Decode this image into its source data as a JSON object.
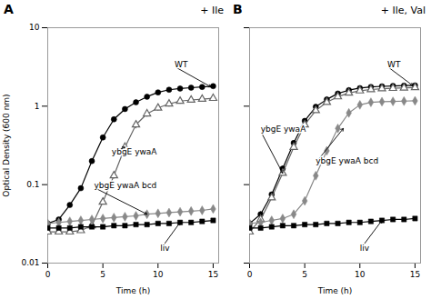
{
  "chart_data": [
    {
      "type": "line",
      "title": "A",
      "subtitle": "+ Ile",
      "x_label": "Time (h)",
      "y_label": "Optical Density (600 nm)",
      "log": "y",
      "xlim": [
        0,
        15.5
      ],
      "xticks": [
        0,
        5,
        10,
        15
      ],
      "ylim": [
        0.01,
        10
      ],
      "yticks": [
        0.01,
        0.1,
        1,
        10
      ],
      "x": [
        0,
        1,
        2,
        3,
        4,
        5,
        6,
        7,
        8,
        9,
        10,
        11,
        12,
        13,
        14,
        15
      ],
      "series": [
        {
          "name": "WT",
          "color": "#000000",
          "marker": "circle",
          "values": [
            0.032,
            0.036,
            0.055,
            0.09,
            0.2,
            0.4,
            0.68,
            0.92,
            1.12,
            1.32,
            1.5,
            1.62,
            1.68,
            1.72,
            1.76,
            1.8
          ],
          "errors": [
            0.002,
            0.002,
            0.003,
            0.005,
            0.012,
            0.022,
            0.045,
            0.062,
            0.072,
            0.082,
            0.09,
            0.1,
            0.1,
            0.1,
            0.1,
            0.1
          ]
        },
        {
          "name": "ybgE ywaA",
          "color": "#666666",
          "marker": "triangle-open",
          "values": [
            0.025,
            0.025,
            0.025,
            0.026,
            0.03,
            0.06,
            0.13,
            0.3,
            0.58,
            0.8,
            0.95,
            1.07,
            1.16,
            1.2,
            1.23,
            1.26
          ],
          "errors": [
            0.002,
            0.002,
            0.002,
            0.002,
            0.003,
            0.005,
            0.012,
            0.035,
            0.065,
            0.075,
            0.085,
            0.095,
            0.1,
            0.1,
            0.1,
            0.1
          ]
        },
        {
          "name": "ybgE ywaA bcd",
          "color": "#888888",
          "marker": "diamond",
          "values": [
            0.032,
            0.033,
            0.034,
            0.035,
            0.036,
            0.037,
            0.038,
            0.039,
            0.04,
            0.042,
            0.043,
            0.044,
            0.045,
            0.046,
            0.047,
            0.049
          ]
        },
        {
          "name": "liv",
          "color": "#000000",
          "marker": "square",
          "values": [
            0.028,
            0.028,
            0.028,
            0.029,
            0.029,
            0.029,
            0.03,
            0.03,
            0.031,
            0.031,
            0.032,
            0.032,
            0.033,
            0.033,
            0.034,
            0.035
          ]
        }
      ],
      "annotations": [
        {
          "text": "WT",
          "x": 14.8,
          "y": 1.76,
          "xytext": [
            11.5,
            3.2
          ]
        },
        {
          "text": "ybgE ywaA",
          "x": 7.0,
          "y": 0.3,
          "xytext": [
            5.8,
            0.25
          ]
        },
        {
          "text": "ybgE ywaA bcd",
          "x": 9.0,
          "y": 0.042,
          "xytext": [
            4.2,
            0.092
          ]
        },
        {
          "text": "liv",
          "x": 12.0,
          "y": 0.033,
          "xytext": [
            10.2,
            0.0148
          ]
        }
      ]
    },
    {
      "type": "line",
      "title": "B",
      "subtitle": "+ Ile, Val",
      "x_label": "Time (h)",
      "log": "y",
      "tick_labels": "x",
      "xlim": [
        0,
        15.5
      ],
      "xticks": [
        0,
        5,
        10,
        15
      ],
      "ylim": [
        0.01,
        10
      ],
      "yticks": [
        0.01,
        0.1,
        1,
        10
      ],
      "x": [
        0,
        1,
        2,
        3,
        4,
        5,
        6,
        7,
        8,
        9,
        10,
        11,
        12,
        13,
        14,
        15
      ],
      "series": [
        {
          "name": "WT",
          "color": "#000000",
          "marker": "circle",
          "values": [
            0.032,
            0.042,
            0.075,
            0.16,
            0.34,
            0.65,
            0.98,
            1.22,
            1.45,
            1.6,
            1.7,
            1.76,
            1.79,
            1.81,
            1.83,
            1.84
          ],
          "errors": [
            0.002,
            0.003,
            0.005,
            0.012,
            0.022,
            0.045,
            0.062,
            0.082,
            0.092,
            0.1,
            0.1,
            0.1,
            0.1,
            0.1,
            0.1,
            0.1
          ]
        },
        {
          "name": "ybgE ywaA",
          "color": "#666666",
          "marker": "triangle-open",
          "values": [
            0.025,
            0.036,
            0.068,
            0.14,
            0.3,
            0.58,
            0.88,
            1.12,
            1.32,
            1.47,
            1.57,
            1.63,
            1.67,
            1.69,
            1.71,
            1.73
          ]
        },
        {
          "name": "ybgE ywaA bcd",
          "color": "#888888",
          "marker": "diamond",
          "values": [
            0.032,
            0.033,
            0.035,
            0.037,
            0.042,
            0.062,
            0.13,
            0.27,
            0.52,
            0.82,
            1.04,
            1.12,
            1.14,
            1.15,
            1.16,
            1.17
          ]
        },
        {
          "name": "liv",
          "color": "#000000",
          "marker": "square",
          "values": [
            0.028,
            0.028,
            0.029,
            0.03,
            0.03,
            0.031,
            0.031,
            0.032,
            0.032,
            0.033,
            0.033,
            0.034,
            0.035,
            0.036,
            0.036,
            0.037
          ]
        }
      ],
      "annotations": [
        {
          "text": "WT",
          "x": 14.8,
          "y": 1.83,
          "xytext": [
            12.5,
            3.2
          ]
        },
        {
          "text": "ybgE ywaA",
          "x": 3.0,
          "y": 0.14,
          "xytext": [
            1.0,
            0.48
          ]
        },
        {
          "text": "ybgE ywaA bcd",
          "x": 8.5,
          "y": 0.52,
          "xytext": [
            6.0,
            0.19
          ]
        },
        {
          "text": "liv",
          "x": 12.0,
          "y": 0.035,
          "xytext": [
            10.0,
            0.0148
          ]
        }
      ]
    }
  ]
}
